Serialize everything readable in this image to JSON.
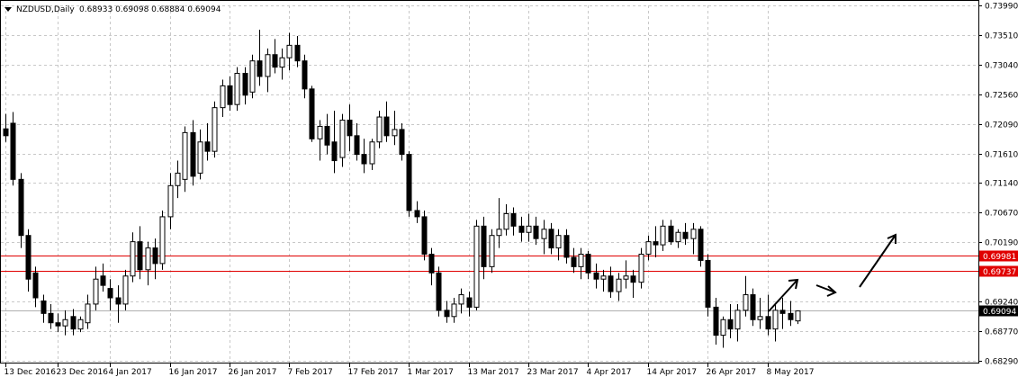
{
  "header": {
    "symbol_label": "NZDUSD,Daily",
    "ohlc_label": "0.68933 0.69098 0.68884 0.69094"
  },
  "colors": {
    "background": "#ffffff",
    "grid": "#c8c8c8",
    "candle": "#000000",
    "level_line": "#e00000",
    "level_label_bg": "#e00000",
    "level_label_text": "#ffffff",
    "current_label_bg": "#000000",
    "current_label_text": "#ffffff",
    "arrow": "#000000"
  },
  "chart_data": {
    "type": "candlestick",
    "title": "NZDUSD,Daily",
    "ylim": [
      0.6829,
      0.7399
    ],
    "y_ticks": [
      "0.73990",
      "0.73510",
      "0.73040",
      "0.72560",
      "0.72090",
      "0.71610",
      "0.71140",
      "0.70670",
      "0.70190",
      "0.69240",
      "0.68770",
      "0.68290"
    ],
    "x_ticks": [
      {
        "index": 0,
        "label": "13 Dec 2016"
      },
      {
        "index": 7,
        "label": "23 Dec 2016"
      },
      {
        "index": 14,
        "label": "4 Jan 2017"
      },
      {
        "index": 22,
        "label": "16 Jan 2017"
      },
      {
        "index": 30,
        "label": "26 Jan 2017"
      },
      {
        "index": 38,
        "label": "7 Feb 2017"
      },
      {
        "index": 46,
        "label": "17 Feb 2017"
      },
      {
        "index": 54,
        "label": "1 Mar 2017"
      },
      {
        "index": 62,
        "label": "13 Mar 2017"
      },
      {
        "index": 70,
        "label": "23 Mar 2017"
      },
      {
        "index": 78,
        "label": "4 Apr 2017"
      },
      {
        "index": 86,
        "label": "14 Apr 2017"
      },
      {
        "index": 94,
        "label": "26 Apr 2017"
      },
      {
        "index": 102,
        "label": "8 May 2017"
      }
    ],
    "candles": [
      [
        0.7201,
        0.7225,
        0.718,
        0.719
      ],
      [
        0.721,
        0.7228,
        0.711,
        0.712
      ],
      [
        0.712,
        0.713,
        0.701,
        0.703
      ],
      [
        0.703,
        0.704,
        0.694,
        0.696
      ],
      [
        0.697,
        0.698,
        0.6915,
        0.693
      ],
      [
        0.6925,
        0.6935,
        0.689,
        0.6905
      ],
      [
        0.6905,
        0.692,
        0.688,
        0.689
      ],
      [
        0.689,
        0.6905,
        0.6875,
        0.6885
      ],
      [
        0.6885,
        0.691,
        0.687,
        0.6895
      ],
      [
        0.69,
        0.6912,
        0.687,
        0.688
      ],
      [
        0.688,
        0.69,
        0.6875,
        0.6895
      ],
      [
        0.689,
        0.6935,
        0.688,
        0.692
      ],
      [
        0.692,
        0.698,
        0.691,
        0.696
      ],
      [
        0.6965,
        0.6985,
        0.694,
        0.695
      ],
      [
        0.6945,
        0.696,
        0.691,
        0.693
      ],
      [
        0.693,
        0.695,
        0.689,
        0.692
      ],
      [
        0.692,
        0.6975,
        0.691,
        0.6965
      ],
      [
        0.6965,
        0.7035,
        0.6955,
        0.702
      ],
      [
        0.702,
        0.7045,
        0.696,
        0.6975
      ],
      [
        0.6975,
        0.702,
        0.695,
        0.701
      ],
      [
        0.701,
        0.7025,
        0.696,
        0.6985
      ],
      [
        0.6985,
        0.707,
        0.6975,
        0.706
      ],
      [
        0.706,
        0.713,
        0.704,
        0.711
      ],
      [
        0.711,
        0.715,
        0.709,
        0.713
      ],
      [
        0.712,
        0.7205,
        0.71,
        0.7195
      ],
      [
        0.7195,
        0.7215,
        0.711,
        0.7125
      ],
      [
        0.713,
        0.72,
        0.712,
        0.718
      ],
      [
        0.718,
        0.721,
        0.715,
        0.7165
      ],
      [
        0.7165,
        0.7245,
        0.7155,
        0.7235
      ],
      [
        0.7235,
        0.728,
        0.722,
        0.727
      ],
      [
        0.727,
        0.7285,
        0.723,
        0.724
      ],
      [
        0.724,
        0.73,
        0.723,
        0.729
      ],
      [
        0.729,
        0.73,
        0.724,
        0.7255
      ],
      [
        0.726,
        0.732,
        0.725,
        0.731
      ],
      [
        0.731,
        0.736,
        0.727,
        0.7285
      ],
      [
        0.7285,
        0.733,
        0.726,
        0.732
      ],
      [
        0.732,
        0.7345,
        0.729,
        0.73
      ],
      [
        0.73,
        0.733,
        0.728,
        0.7315
      ],
      [
        0.7315,
        0.7355,
        0.7295,
        0.7335
      ],
      [
        0.7335,
        0.735,
        0.73,
        0.731
      ],
      [
        0.731,
        0.732,
        0.725,
        0.7265
      ],
      [
        0.7265,
        0.727,
        0.718,
        0.7185
      ],
      [
        0.7185,
        0.7215,
        0.715,
        0.7205
      ],
      [
        0.7205,
        0.7225,
        0.716,
        0.7175
      ],
      [
        0.718,
        0.723,
        0.713,
        0.715
      ],
      [
        0.7155,
        0.7225,
        0.714,
        0.7215
      ],
      [
        0.7215,
        0.724,
        0.7165,
        0.719
      ],
      [
        0.719,
        0.721,
        0.715,
        0.716
      ],
      [
        0.716,
        0.7185,
        0.713,
        0.7145
      ],
      [
        0.7145,
        0.7185,
        0.7135,
        0.718
      ],
      [
        0.718,
        0.723,
        0.717,
        0.722
      ],
      [
        0.722,
        0.7245,
        0.718,
        0.719
      ],
      [
        0.719,
        0.723,
        0.7175,
        0.72
      ],
      [
        0.72,
        0.721,
        0.715,
        0.716
      ],
      [
        0.716,
        0.7165,
        0.706,
        0.707
      ],
      [
        0.707,
        0.7085,
        0.705,
        0.706
      ],
      [
        0.706,
        0.707,
        0.699,
        0.7
      ],
      [
        0.7,
        0.701,
        0.695,
        0.697
      ],
      [
        0.697,
        0.698,
        0.69,
        0.691
      ],
      [
        0.691,
        0.6925,
        0.689,
        0.69
      ],
      [
        0.69,
        0.693,
        0.689,
        0.692
      ],
      [
        0.692,
        0.6945,
        0.6905,
        0.6935
      ],
      [
        0.693,
        0.694,
        0.69,
        0.6915
      ],
      [
        0.6915,
        0.7055,
        0.691,
        0.7045
      ],
      [
        0.7045,
        0.706,
        0.696,
        0.698
      ],
      [
        0.698,
        0.704,
        0.697,
        0.703
      ],
      [
        0.703,
        0.709,
        0.701,
        0.704
      ],
      [
        0.704,
        0.708,
        0.703,
        0.7065
      ],
      [
        0.7065,
        0.7075,
        0.703,
        0.7045
      ],
      [
        0.7045,
        0.706,
        0.702,
        0.7035
      ],
      [
        0.7035,
        0.7065,
        0.702,
        0.7045
      ],
      [
        0.7045,
        0.706,
        0.7015,
        0.7025
      ],
      [
        0.7025,
        0.7055,
        0.7,
        0.704
      ],
      [
        0.704,
        0.705,
        0.7,
        0.701
      ],
      [
        0.701,
        0.704,
        0.699,
        0.703
      ],
      [
        0.703,
        0.704,
        0.6985,
        0.6995
      ],
      [
        0.6995,
        0.701,
        0.697,
        0.698
      ],
      [
        0.698,
        0.701,
        0.696,
        0.7
      ],
      [
        0.7,
        0.7005,
        0.696,
        0.697
      ],
      [
        0.697,
        0.6985,
        0.6945,
        0.696
      ],
      [
        0.696,
        0.6975,
        0.694,
        0.6965
      ],
      [
        0.6965,
        0.698,
        0.693,
        0.694
      ],
      [
        0.694,
        0.697,
        0.6925,
        0.696
      ],
      [
        0.696,
        0.699,
        0.6945,
        0.6965
      ],
      [
        0.6965,
        0.6975,
        0.693,
        0.6955
      ],
      [
        0.6955,
        0.701,
        0.6945,
        0.7
      ],
      [
        0.7,
        0.703,
        0.699,
        0.702
      ],
      [
        0.702,
        0.7045,
        0.6995,
        0.7015
      ],
      [
        0.7015,
        0.7055,
        0.7005,
        0.7045
      ],
      [
        0.7045,
        0.7055,
        0.7015,
        0.702
      ],
      [
        0.702,
        0.704,
        0.701,
        0.7035
      ],
      [
        0.7035,
        0.705,
        0.7015,
        0.7025
      ],
      [
        0.7025,
        0.705,
        0.7,
        0.704
      ],
      [
        0.704,
        0.7045,
        0.698,
        0.699
      ],
      [
        0.699,
        0.7,
        0.69,
        0.6915
      ],
      [
        0.6915,
        0.693,
        0.6855,
        0.687
      ],
      [
        0.687,
        0.69,
        0.685,
        0.6895
      ],
      [
        0.6895,
        0.692,
        0.6865,
        0.688
      ],
      [
        0.688,
        0.692,
        0.686,
        0.691
      ],
      [
        0.691,
        0.6965,
        0.69,
        0.6935
      ],
      [
        0.6935,
        0.6945,
        0.6885,
        0.6895
      ],
      [
        0.6895,
        0.693,
        0.688,
        0.69
      ],
      [
        0.69,
        0.6935,
        0.687,
        0.688
      ],
      [
        0.688,
        0.692,
        0.686,
        0.691
      ],
      [
        0.691,
        0.693,
        0.688,
        0.6905
      ],
      [
        0.6905,
        0.6925,
        0.6885,
        0.6895
      ],
      [
        0.6893,
        0.691,
        0.6888,
        0.6909
      ]
    ],
    "levels": [
      {
        "value": 0.69981,
        "label": "0.69981"
      },
      {
        "value": 0.69737,
        "label": "0.69737"
      }
    ],
    "current_price": {
      "value": 0.69094,
      "label": "0.69094"
    },
    "grid": true
  }
}
